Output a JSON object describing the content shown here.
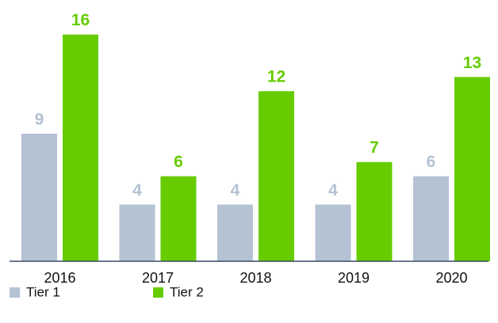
{
  "chart_data": {
    "type": "bar",
    "categories": [
      "2016",
      "2017",
      "2018",
      "2019",
      "2020"
    ],
    "series": [
      {
        "name": "Tier 1",
        "color": "#b4c2d4",
        "values": [
          9,
          4,
          4,
          4,
          6
        ]
      },
      {
        "name": "Tier 2",
        "color": "#66cc00",
        "values": [
          16,
          6,
          12,
          7,
          13
        ]
      }
    ]
  }
}
